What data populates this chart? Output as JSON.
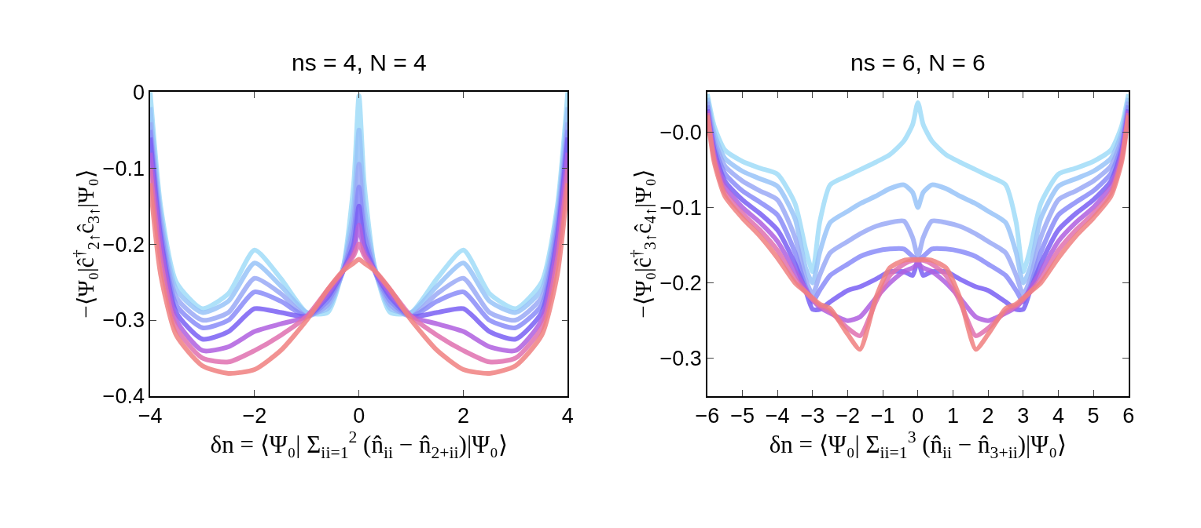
{
  "chart_data": [
    {
      "type": "line",
      "title": "ns = 4, N = 4",
      "xlabel": "δn = ⟨Ψ₀| Σ$_{ii=1}$$^{2}$ (n̂$_{ii}$ − n̂$_{2+ii}$)|Ψ₀⟩",
      "ylabel": "−⟨Ψ₀|ĉ$^{†}$$_{2↑}$ĉ$_{3↑}$|Ψ₀⟩",
      "x": [
        -4,
        -3.8,
        -3.5,
        -3,
        -2.5,
        -2,
        -1.5,
        -1,
        -0.6,
        -0.3,
        -0.1,
        0,
        0.1,
        0.3,
        0.6,
        1,
        1.5,
        2,
        2.5,
        3,
        3.5,
        3.8,
        4
      ],
      "xlim": [
        -4,
        4
      ],
      "xticks": [
        -4,
        -2,
        0,
        2,
        4
      ],
      "ylim": [
        -0.4,
        0
      ],
      "yticks": [
        -0.4,
        -0.3,
        -0.2,
        -0.1,
        0
      ],
      "marker": "none",
      "line_style": "solid",
      "series": [
        {
          "color": "#a0dcf8",
          "values": [
            0,
            -0.15,
            -0.25,
            -0.285,
            -0.265,
            -0.208,
            -0.245,
            -0.29,
            -0.29,
            -0.23,
            -0.12,
            -0.005,
            -0.12,
            -0.23,
            -0.29,
            -0.29,
            -0.245,
            -0.208,
            -0.265,
            -0.285,
            -0.25,
            -0.15,
            0
          ]
        },
        {
          "color": "#98c4f8",
          "values": [
            -0.02,
            -0.16,
            -0.26,
            -0.29,
            -0.275,
            -0.225,
            -0.255,
            -0.29,
            -0.285,
            -0.23,
            -0.15,
            -0.05,
            -0.15,
            -0.23,
            -0.285,
            -0.29,
            -0.255,
            -0.225,
            -0.275,
            -0.29,
            -0.26,
            -0.16,
            -0.02
          ]
        },
        {
          "color": "#9aaaf6",
          "values": [
            -0.04,
            -0.17,
            -0.27,
            -0.3,
            -0.29,
            -0.245,
            -0.265,
            -0.295,
            -0.28,
            -0.235,
            -0.17,
            -0.095,
            -0.17,
            -0.235,
            -0.28,
            -0.295,
            -0.265,
            -0.245,
            -0.29,
            -0.3,
            -0.27,
            -0.17,
            -0.04
          ]
        },
        {
          "color": "#8a8cf8",
          "values": [
            -0.05,
            -0.18,
            -0.28,
            -0.31,
            -0.3,
            -0.263,
            -0.275,
            -0.295,
            -0.275,
            -0.235,
            -0.185,
            -0.125,
            -0.185,
            -0.235,
            -0.275,
            -0.295,
            -0.275,
            -0.263,
            -0.3,
            -0.31,
            -0.28,
            -0.18,
            -0.05
          ]
        },
        {
          "color": "#7a60f4",
          "values": [
            -0.06,
            -0.19,
            -0.29,
            -0.325,
            -0.315,
            -0.285,
            -0.29,
            -0.295,
            -0.27,
            -0.235,
            -0.2,
            -0.15,
            -0.2,
            -0.235,
            -0.27,
            -0.295,
            -0.29,
            -0.285,
            -0.315,
            -0.325,
            -0.29,
            -0.19,
            -0.06
          ]
        },
        {
          "color": "#b060e0",
          "values": [
            -0.08,
            -0.2,
            -0.3,
            -0.34,
            -0.335,
            -0.315,
            -0.305,
            -0.295,
            -0.265,
            -0.235,
            -0.21,
            -0.175,
            -0.21,
            -0.235,
            -0.265,
            -0.295,
            -0.305,
            -0.315,
            -0.335,
            -0.34,
            -0.3,
            -0.2,
            -0.08
          ]
        },
        {
          "color": "#e070b0",
          "values": [
            -0.1,
            -0.22,
            -0.31,
            -0.35,
            -0.355,
            -0.34,
            -0.32,
            -0.295,
            -0.26,
            -0.235,
            -0.215,
            -0.2,
            -0.215,
            -0.235,
            -0.26,
            -0.295,
            -0.32,
            -0.34,
            -0.355,
            -0.35,
            -0.31,
            -0.22,
            -0.1
          ]
        },
        {
          "color": "#f08080",
          "values": [
            -0.12,
            -0.24,
            -0.32,
            -0.36,
            -0.37,
            -0.365,
            -0.34,
            -0.3,
            -0.26,
            -0.235,
            -0.225,
            -0.22,
            -0.225,
            -0.235,
            -0.26,
            -0.3,
            -0.34,
            -0.365,
            -0.37,
            -0.36,
            -0.32,
            -0.24,
            -0.12
          ]
        }
      ]
    },
    {
      "type": "line",
      "title": "ns = 6, N = 6",
      "xlabel": "δn = ⟨Ψ₀| Σ$_{ii=1}$$^{3}$ (n̂$_{ii}$ − n̂$_{3+ii}$)|Ψ₀⟩",
      "ylabel": "−⟨Ψ₀|ĉ$^{†}$$_{3↑}$ĉ$_{4↑}$|Ψ₀⟩",
      "x": [
        -6,
        -5.8,
        -5.5,
        -5,
        -4.5,
        -4,
        -3.5,
        -3.2,
        -3,
        -2.8,
        -2.5,
        -2,
        -1.65,
        -1.2,
        -0.8,
        -0.4,
        -0.15,
        0,
        0.15,
        0.4,
        0.8,
        1.2,
        1.65,
        2,
        2.5,
        2.8,
        3,
        3.2,
        3.5,
        4,
        4.5,
        5,
        5.5,
        5.8,
        6
      ],
      "xlim": [
        -6,
        6
      ],
      "xticks": [
        -6,
        -5,
        -4,
        -3,
        -2,
        -1,
        0,
        1,
        2,
        3,
        4,
        5,
        6
      ],
      "ylim": [
        -0.35,
        0.053
      ],
      "yticks": [
        -0.3,
        -0.2,
        -0.1,
        {
          "value": 0,
          "label": "−0.0"
        }
      ],
      "marker": "none",
      "line_style": "solid",
      "series": [
        {
          "color": "#a0dcf8",
          "values": [
            0.05,
            0.007,
            -0.024,
            -0.039,
            -0.048,
            -0.056,
            -0.095,
            -0.155,
            -0.185,
            -0.12,
            -0.07,
            -0.058,
            -0.05,
            -0.04,
            -0.03,
            -0.012,
            0.01,
            0.039,
            0.01,
            -0.012,
            -0.03,
            -0.04,
            -0.05,
            -0.058,
            -0.07,
            -0.12,
            -0.185,
            -0.155,
            -0.095,
            -0.056,
            -0.048,
            -0.039,
            -0.024,
            0.007,
            0.05
          ]
        },
        {
          "color": "#98c4f8",
          "values": [
            0.045,
            -0.002,
            -0.035,
            -0.052,
            -0.062,
            -0.072,
            -0.115,
            -0.18,
            -0.2,
            -0.16,
            -0.12,
            -0.105,
            -0.095,
            -0.085,
            -0.075,
            -0.07,
            -0.08,
            -0.1,
            -0.08,
            -0.07,
            -0.075,
            -0.085,
            -0.095,
            -0.105,
            -0.12,
            -0.16,
            -0.2,
            -0.18,
            -0.115,
            -0.072,
            -0.062,
            -0.052,
            -0.035,
            -0.002,
            0.045
          ]
        },
        {
          "color": "#9aaaf6",
          "values": [
            0.04,
            -0.01,
            -0.045,
            -0.065,
            -0.078,
            -0.09,
            -0.14,
            -0.195,
            -0.215,
            -0.19,
            -0.16,
            -0.145,
            -0.135,
            -0.125,
            -0.12,
            -0.118,
            -0.14,
            -0.165,
            -0.14,
            -0.118,
            -0.12,
            -0.125,
            -0.135,
            -0.145,
            -0.16,
            -0.19,
            -0.215,
            -0.195,
            -0.14,
            -0.09,
            -0.078,
            -0.065,
            -0.045,
            -0.01,
            0.04
          ]
        },
        {
          "color": "#8a8cf8",
          "values": [
            0.035,
            -0.018,
            -0.055,
            -0.078,
            -0.093,
            -0.11,
            -0.16,
            -0.205,
            -0.225,
            -0.21,
            -0.19,
            -0.175,
            -0.165,
            -0.158,
            -0.155,
            -0.155,
            -0.165,
            -0.17,
            -0.165,
            -0.155,
            -0.155,
            -0.158,
            -0.165,
            -0.175,
            -0.19,
            -0.21,
            -0.225,
            -0.205,
            -0.16,
            -0.11,
            -0.093,
            -0.078,
            -0.055,
            -0.018,
            0.035
          ]
        },
        {
          "color": "#7a60f4",
          "values": [
            0.03,
            -0.025,
            -0.065,
            -0.09,
            -0.108,
            -0.13,
            -0.175,
            -0.21,
            -0.235,
            -0.235,
            -0.225,
            -0.21,
            -0.205,
            -0.195,
            -0.185,
            -0.185,
            -0.19,
            -0.17,
            -0.19,
            -0.185,
            -0.185,
            -0.195,
            -0.205,
            -0.21,
            -0.225,
            -0.235,
            -0.235,
            -0.21,
            -0.175,
            -0.13,
            -0.108,
            -0.09,
            -0.065,
            -0.025,
            0.03
          ]
        },
        {
          "color": "#b060e0",
          "values": [
            0.028,
            -0.03,
            -0.072,
            -0.1,
            -0.12,
            -0.145,
            -0.185,
            -0.208,
            -0.222,
            -0.232,
            -0.24,
            -0.25,
            -0.245,
            -0.22,
            -0.2,
            -0.185,
            -0.18,
            -0.175,
            -0.18,
            -0.185,
            -0.2,
            -0.22,
            -0.245,
            -0.25,
            -0.24,
            -0.232,
            -0.222,
            -0.208,
            -0.185,
            -0.145,
            -0.12,
            -0.1,
            -0.072,
            -0.03,
            0.028
          ]
        },
        {
          "color": "#e070b0",
          "values": [
            0.025,
            -0.036,
            -0.08,
            -0.108,
            -0.13,
            -0.157,
            -0.195,
            -0.212,
            -0.222,
            -0.23,
            -0.238,
            -0.26,
            -0.27,
            -0.225,
            -0.19,
            -0.175,
            -0.17,
            -0.17,
            -0.17,
            -0.175,
            -0.19,
            -0.225,
            -0.27,
            -0.26,
            -0.238,
            -0.23,
            -0.222,
            -0.212,
            -0.195,
            -0.157,
            -0.13,
            -0.108,
            -0.08,
            -0.036,
            0.025
          ]
        },
        {
          "color": "#f08080",
          "values": [
            0.022,
            -0.041,
            -0.085,
            -0.114,
            -0.138,
            -0.167,
            -0.2,
            -0.212,
            -0.22,
            -0.228,
            -0.234,
            -0.268,
            -0.288,
            -0.22,
            -0.18,
            -0.17,
            -0.169,
            -0.169,
            -0.169,
            -0.17,
            -0.18,
            -0.22,
            -0.288,
            -0.268,
            -0.234,
            -0.228,
            -0.22,
            -0.212,
            -0.2,
            -0.167,
            -0.138,
            -0.114,
            -0.085,
            -0.041,
            0.022
          ]
        }
      ]
    }
  ]
}
